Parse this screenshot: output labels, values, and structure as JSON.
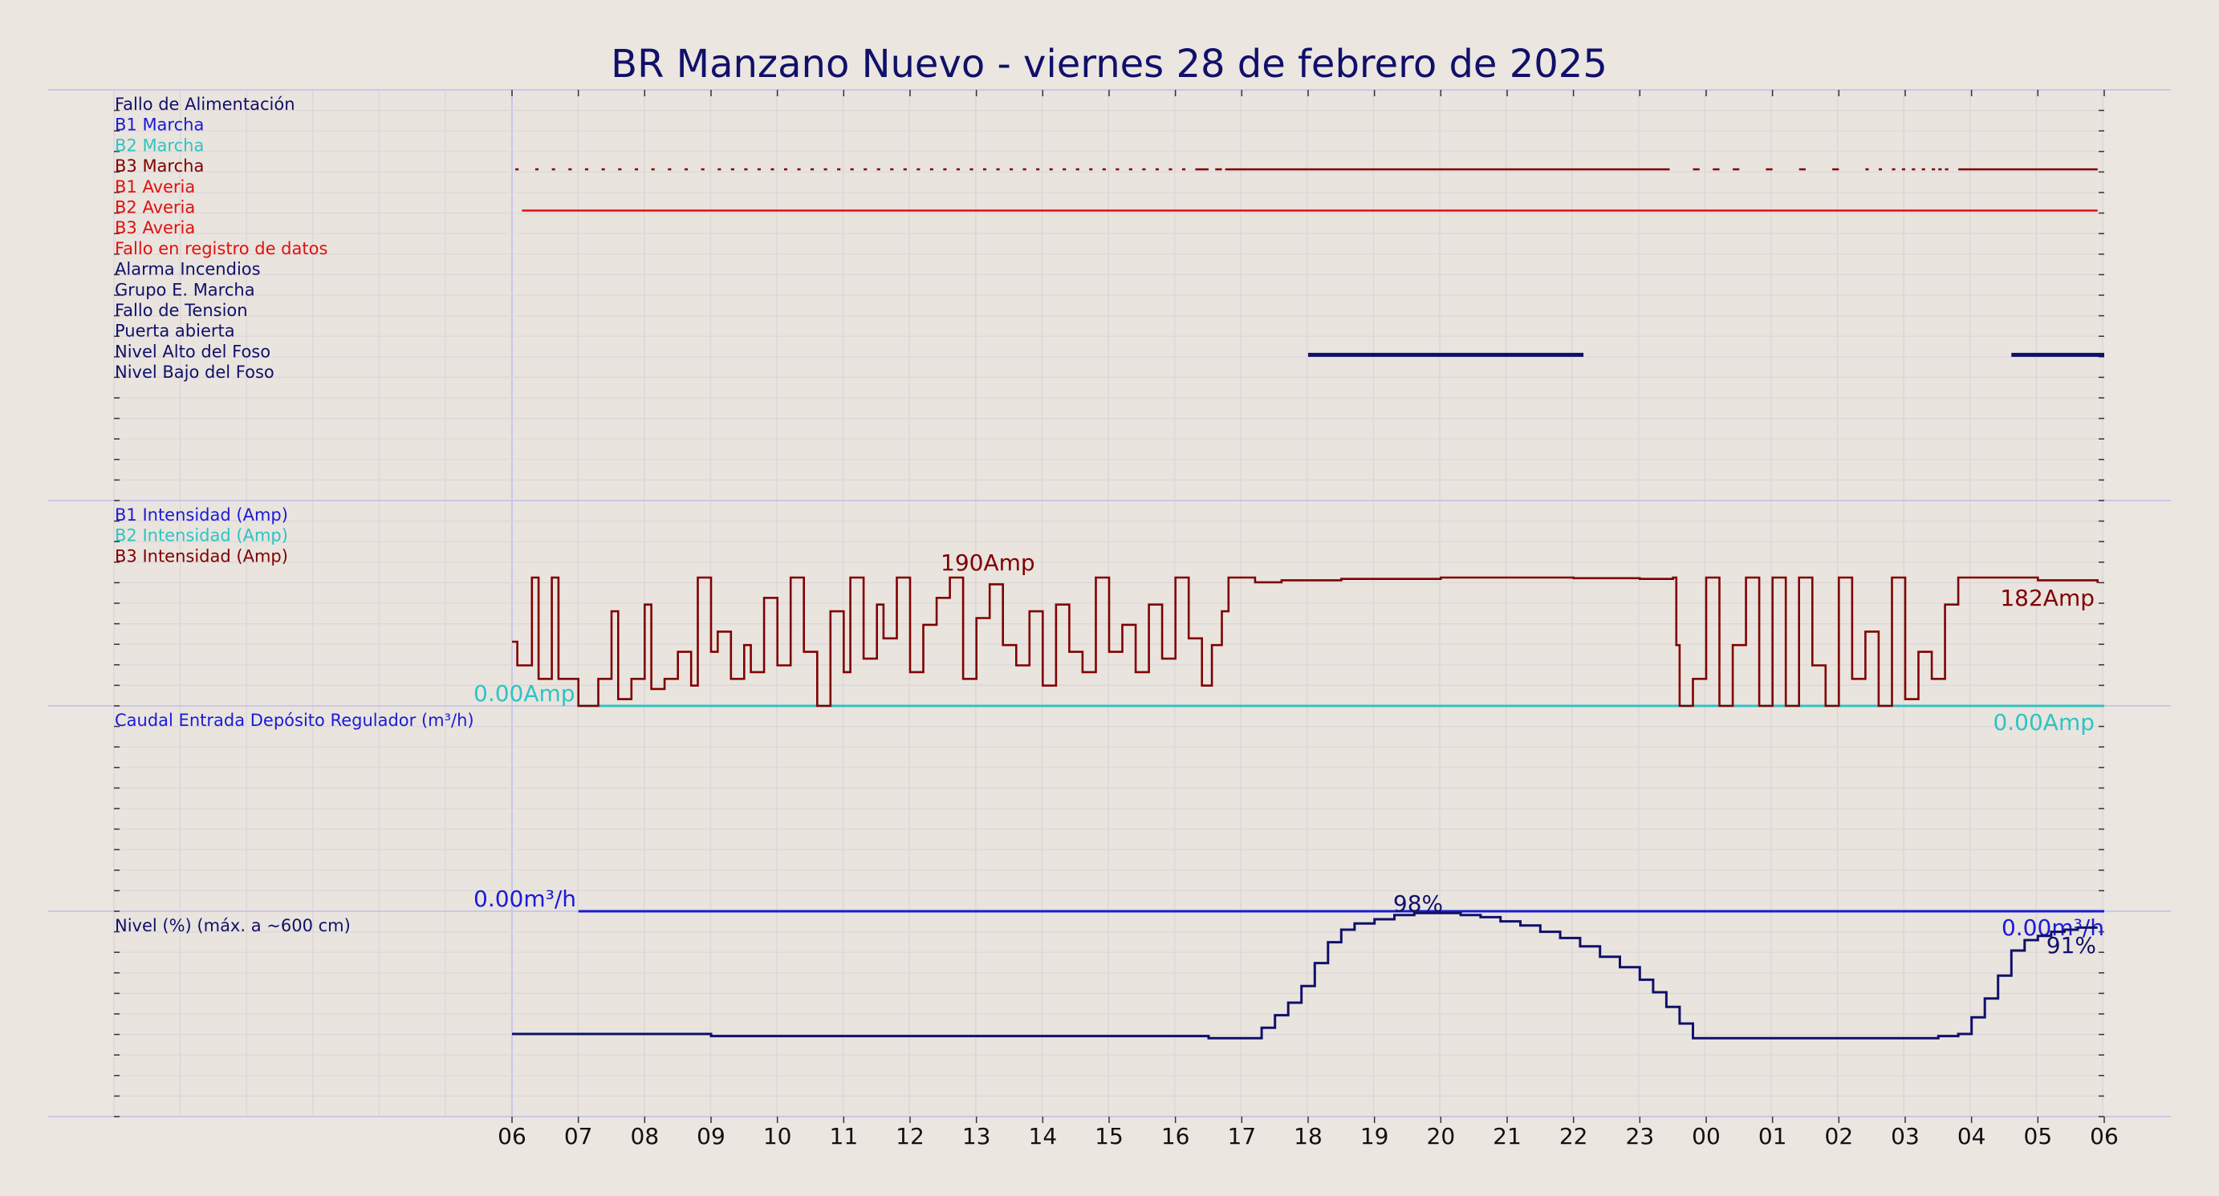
{
  "chart_data": [
    {
      "type": "line",
      "title": "BR Manzano Nuevo   -   viernes 28 de febrero de 2025",
      "panel": "estados",
      "x_tick_labels": [
        "06",
        "07",
        "08",
        "09",
        "10",
        "11",
        "12",
        "13",
        "14",
        "15",
        "16",
        "17",
        "18",
        "19",
        "20",
        "21",
        "22",
        "23",
        "00",
        "01",
        "02",
        "03",
        "04",
        "05",
        "06"
      ],
      "grid": true,
      "series": [
        {
          "name": "Fallo de Alimentación",
          "color": "#10106a",
          "segments": []
        },
        {
          "name": "B1 Marcha",
          "color": "#1a1ad8",
          "segments": []
        },
        {
          "name": "B2 Marcha",
          "color": "#2ec4c4",
          "segments": []
        },
        {
          "name": "B3 Marcha",
          "color": "#800000",
          "segments": [
            [
              6.05,
              6.1
            ],
            [
              6.35,
              6.4
            ],
            [
              6.6,
              6.65
            ],
            [
              6.85,
              6.9
            ],
            [
              7.1,
              7.15
            ],
            [
              7.35,
              7.4
            ],
            [
              7.6,
              7.65
            ],
            [
              7.85,
              7.9
            ],
            [
              8.1,
              8.15
            ],
            [
              8.35,
              8.4
            ],
            [
              8.6,
              8.65
            ],
            [
              8.85,
              8.9
            ],
            [
              9.1,
              9.15
            ],
            [
              9.3,
              9.35
            ],
            [
              9.5,
              9.55
            ],
            [
              9.7,
              9.75
            ],
            [
              9.9,
              9.95
            ],
            [
              10.1,
              10.15
            ],
            [
              10.3,
              10.35
            ],
            [
              10.5,
              10.55
            ],
            [
              10.7,
              10.75
            ],
            [
              10.9,
              10.95
            ],
            [
              11.1,
              11.15
            ],
            [
              11.3,
              11.35
            ],
            [
              11.5,
              11.55
            ],
            [
              11.7,
              11.75
            ],
            [
              11.9,
              11.95
            ],
            [
              12.1,
              12.15
            ],
            [
              12.3,
              12.35
            ],
            [
              12.5,
              12.55
            ],
            [
              12.7,
              12.75
            ],
            [
              12.9,
              12.95
            ],
            [
              13.1,
              13.15
            ],
            [
              13.3,
              13.35
            ],
            [
              13.5,
              13.55
            ],
            [
              13.7,
              13.75
            ],
            [
              13.9,
              13.95
            ],
            [
              14.1,
              14.15
            ],
            [
              14.3,
              14.35
            ],
            [
              14.5,
              14.55
            ],
            [
              14.7,
              14.75
            ],
            [
              14.9,
              14.95
            ],
            [
              15.1,
              15.15
            ],
            [
              15.3,
              15.35
            ],
            [
              15.5,
              15.55
            ],
            [
              15.7,
              15.75
            ],
            [
              15.9,
              15.95
            ],
            [
              16.1,
              16.15
            ],
            [
              16.3,
              16.5
            ],
            [
              16.6,
              16.7
            ],
            [
              16.75,
              23.45
            ],
            [
              23.8,
              23.9
            ],
            [
              24.1,
              24.2
            ],
            [
              24.4,
              24.5
            ],
            [
              24.9,
              25.0
            ],
            [
              25.4,
              25.5
            ],
            [
              25.9,
              26.0
            ],
            [
              26.4,
              26.45
            ],
            [
              26.6,
              26.65
            ],
            [
              26.8,
              26.85
            ],
            [
              26.95,
              27.0
            ],
            [
              27.1,
              27.15
            ],
            [
              27.25,
              27.3
            ],
            [
              27.4,
              27.45
            ],
            [
              27.5,
              27.55
            ],
            [
              27.6,
              27.65
            ],
            [
              27.8,
              29.9
            ]
          ]
        },
        {
          "name": "B1 Averia",
          "color": "#e01010",
          "segments": []
        },
        {
          "name": "B2 Averia",
          "color": "#e01010",
          "segments": [
            [
              6.15,
              29.9
            ]
          ]
        },
        {
          "name": "B3 Averia",
          "color": "#e01010",
          "segments": []
        },
        {
          "name": "Fallo en registro de datos",
          "color": "#e01010",
          "segments": []
        },
        {
          "name": "Alarma Incendios",
          "color": "#10106a",
          "segments": []
        },
        {
          "name": "Grupo E. Marcha",
          "color": "#10106a",
          "segments": []
        },
        {
          "name": "Fallo de Tension",
          "color": "#10106a",
          "segments": []
        },
        {
          "name": "Puerta abierta",
          "color": "#10106a",
          "segments": []
        },
        {
          "name": "Nivel Alto del Foso",
          "color": "#10106a",
          "segments": [
            [
              18.0,
              22.15
            ],
            [
              28.6,
              30.0
            ]
          ]
        },
        {
          "name": "Nivel Bajo del Foso",
          "color": "#10106a",
          "segments": []
        }
      ]
    },
    {
      "type": "line",
      "panel": "intensidad",
      "ylim": [
        0,
        200
      ],
      "series": [
        {
          "name": "B1 Intensidad (Amp)",
          "color": "#1a1ad8",
          "values": []
        },
        {
          "name": "B2 Intensidad (Amp)",
          "color": "#2ec4c4",
          "values": [
            [
              7.0,
              0
            ],
            [
              30.0,
              0
            ]
          ]
        },
        {
          "name": "B3 Intensidad (Amp)",
          "color": "#800000",
          "values": [
            [
              6.0,
              95
            ],
            [
              6.08,
              60
            ],
            [
              6.3,
              190
            ],
            [
              6.4,
              40
            ],
            [
              6.6,
              190
            ],
            [
              6.7,
              40
            ],
            [
              7.0,
              0
            ],
            [
              7.3,
              40
            ],
            [
              7.5,
              140
            ],
            [
              7.6,
              10
            ],
            [
              7.8,
              40
            ],
            [
              8.0,
              150
            ],
            [
              8.1,
              25
            ],
            [
              8.3,
              40
            ],
            [
              8.5,
              80
            ],
            [
              8.7,
              30
            ],
            [
              8.8,
              190
            ],
            [
              9.0,
              80
            ],
            [
              9.1,
              110
            ],
            [
              9.3,
              40
            ],
            [
              9.5,
              90
            ],
            [
              9.6,
              50
            ],
            [
              9.8,
              160
            ],
            [
              10.0,
              60
            ],
            [
              10.2,
              190
            ],
            [
              10.4,
              80
            ],
            [
              10.6,
              0
            ],
            [
              10.8,
              140
            ],
            [
              11.0,
              50
            ],
            [
              11.1,
              190
            ],
            [
              11.3,
              70
            ],
            [
              11.5,
              150
            ],
            [
              11.6,
              100
            ],
            [
              11.8,
              190
            ],
            [
              12.0,
              50
            ],
            [
              12.2,
              120
            ],
            [
              12.4,
              160
            ],
            [
              12.6,
              190
            ],
            [
              12.8,
              40
            ],
            [
              13.0,
              130
            ],
            [
              13.2,
              180
            ],
            [
              13.4,
              90
            ],
            [
              13.6,
              60
            ],
            [
              13.8,
              140
            ],
            [
              14.0,
              30
            ],
            [
              14.2,
              150
            ],
            [
              14.4,
              80
            ],
            [
              14.6,
              50
            ],
            [
              14.8,
              190
            ],
            [
              15.0,
              80
            ],
            [
              15.2,
              120
            ],
            [
              15.4,
              50
            ],
            [
              15.6,
              150
            ],
            [
              15.8,
              70
            ],
            [
              16.0,
              190
            ],
            [
              16.2,
              100
            ],
            [
              16.4,
              30
            ],
            [
              16.55,
              90
            ],
            [
              16.7,
              140
            ],
            [
              16.8,
              190
            ],
            [
              17.2,
              183
            ],
            [
              17.6,
              186
            ],
            [
              18.5,
              188
            ],
            [
              20.0,
              190
            ],
            [
              21.0,
              190
            ],
            [
              22.0,
              189
            ],
            [
              23.0,
              188
            ],
            [
              23.5,
              190
            ],
            [
              23.55,
              90
            ],
            [
              23.6,
              0
            ],
            [
              23.8,
              40
            ],
            [
              24.0,
              190
            ],
            [
              24.2,
              0
            ],
            [
              24.4,
              90
            ],
            [
              24.6,
              190
            ],
            [
              24.8,
              0
            ],
            [
              25.0,
              190
            ],
            [
              25.2,
              0
            ],
            [
              25.4,
              190
            ],
            [
              25.6,
              60
            ],
            [
              25.8,
              0
            ],
            [
              26.0,
              190
            ],
            [
              26.2,
              40
            ],
            [
              26.4,
              110
            ],
            [
              26.6,
              0
            ],
            [
              26.8,
              190
            ],
            [
              27.0,
              10
            ],
            [
              27.2,
              80
            ],
            [
              27.4,
              40
            ],
            [
              27.6,
              150
            ],
            [
              27.8,
              190
            ],
            [
              28.4,
              190
            ],
            [
              29.0,
              186
            ],
            [
              29.9,
              182
            ]
          ]
        }
      ],
      "annotations": [
        "190Amp",
        "182Amp",
        "0.00Amp",
        "0.00Amp"
      ]
    },
    {
      "type": "line",
      "panel": "caudal",
      "series": [
        {
          "name": "Caudal Entrada Depósito Regulador (m³/h)",
          "color": "#1a1ad8",
          "values": [
            [
              7.0,
              0
            ],
            [
              30.0,
              0
            ]
          ]
        }
      ],
      "annotations": [
        "0.00m³/h",
        "0.00m³/h"
      ]
    },
    {
      "type": "line",
      "panel": "nivel",
      "ylim": [
        0,
        100
      ],
      "series": [
        {
          "name": "Nivel (%) (máx. a ~600 cm)",
          "color": "#10106a",
          "values": [
            [
              6.0,
              40
            ],
            [
              7.0,
              40
            ],
            [
              8.0,
              40
            ],
            [
              9.0,
              39
            ],
            [
              10.0,
              39
            ],
            [
              11.0,
              39
            ],
            [
              12.0,
              39
            ],
            [
              13.0,
              39
            ],
            [
              14.0,
              39
            ],
            [
              15.0,
              39
            ],
            [
              16.0,
              39
            ],
            [
              16.5,
              38
            ],
            [
              17.0,
              38
            ],
            [
              17.3,
              43
            ],
            [
              17.5,
              49
            ],
            [
              17.7,
              55
            ],
            [
              17.9,
              63
            ],
            [
              18.1,
              74
            ],
            [
              18.3,
              84
            ],
            [
              18.5,
              90
            ],
            [
              18.7,
              93
            ],
            [
              19.0,
              95
            ],
            [
              19.3,
              97
            ],
            [
              19.6,
              98
            ],
            [
              20.0,
              98
            ],
            [
              20.3,
              97
            ],
            [
              20.6,
              96
            ],
            [
              20.9,
              94
            ],
            [
              21.2,
              92
            ],
            [
              21.5,
              89
            ],
            [
              21.8,
              86
            ],
            [
              22.1,
              82
            ],
            [
              22.4,
              77
            ],
            [
              22.7,
              72
            ],
            [
              23.0,
              66
            ],
            [
              23.2,
              60
            ],
            [
              23.4,
              53
            ],
            [
              23.6,
              45
            ],
            [
              23.8,
              38
            ],
            [
              24.5,
              38
            ],
            [
              25.0,
              38
            ],
            [
              25.5,
              38
            ],
            [
              26.0,
              38
            ],
            [
              26.5,
              38
            ],
            [
              27.0,
              38
            ],
            [
              27.5,
              39
            ],
            [
              27.8,
              40
            ],
            [
              28.0,
              48
            ],
            [
              28.2,
              57
            ],
            [
              28.4,
              68
            ],
            [
              28.6,
              80
            ],
            [
              28.8,
              85
            ],
            [
              29.0,
              87
            ],
            [
              29.2,
              89
            ],
            [
              29.4,
              90
            ],
            [
              29.6,
              91
            ],
            [
              29.9,
              91
            ]
          ]
        }
      ],
      "annotations": [
        "98%",
        "91%"
      ]
    }
  ]
}
